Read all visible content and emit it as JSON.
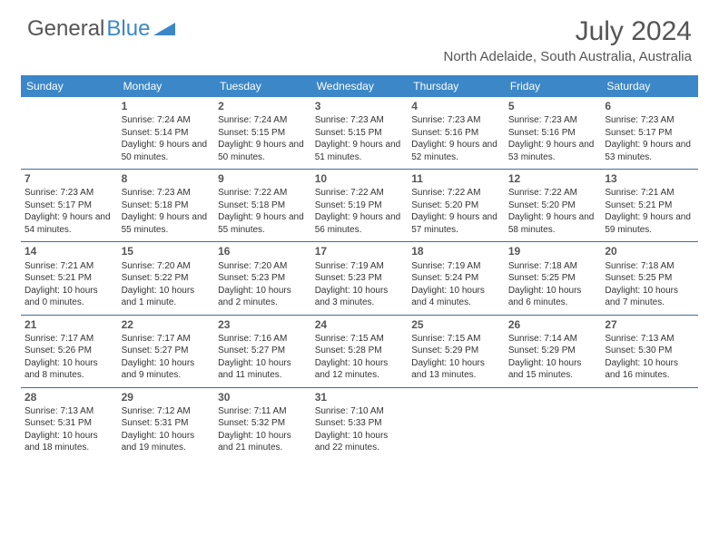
{
  "logo": {
    "text1": "General",
    "text2": "Blue",
    "triangle_color": "#3b87c8"
  },
  "title": "July 2024",
  "location": "North Adelaide, South Australia, Australia",
  "header_bg": "#3b87c8",
  "divider_color": "#3b6f9e",
  "days_of_week": [
    "Sunday",
    "Monday",
    "Tuesday",
    "Wednesday",
    "Thursday",
    "Friday",
    "Saturday"
  ],
  "weeks": [
    [
      null,
      {
        "n": "1",
        "sr": "7:24 AM",
        "ss": "5:14 PM",
        "dl": "9 hours and 50 minutes."
      },
      {
        "n": "2",
        "sr": "7:24 AM",
        "ss": "5:15 PM",
        "dl": "9 hours and 50 minutes."
      },
      {
        "n": "3",
        "sr": "7:23 AM",
        "ss": "5:15 PM",
        "dl": "9 hours and 51 minutes."
      },
      {
        "n": "4",
        "sr": "7:23 AM",
        "ss": "5:16 PM",
        "dl": "9 hours and 52 minutes."
      },
      {
        "n": "5",
        "sr": "7:23 AM",
        "ss": "5:16 PM",
        "dl": "9 hours and 53 minutes."
      },
      {
        "n": "6",
        "sr": "7:23 AM",
        "ss": "5:17 PM",
        "dl": "9 hours and 53 minutes."
      }
    ],
    [
      {
        "n": "7",
        "sr": "7:23 AM",
        "ss": "5:17 PM",
        "dl": "9 hours and 54 minutes."
      },
      {
        "n": "8",
        "sr": "7:23 AM",
        "ss": "5:18 PM",
        "dl": "9 hours and 55 minutes."
      },
      {
        "n": "9",
        "sr": "7:22 AM",
        "ss": "5:18 PM",
        "dl": "9 hours and 55 minutes."
      },
      {
        "n": "10",
        "sr": "7:22 AM",
        "ss": "5:19 PM",
        "dl": "9 hours and 56 minutes."
      },
      {
        "n": "11",
        "sr": "7:22 AM",
        "ss": "5:20 PM",
        "dl": "9 hours and 57 minutes."
      },
      {
        "n": "12",
        "sr": "7:22 AM",
        "ss": "5:20 PM",
        "dl": "9 hours and 58 minutes."
      },
      {
        "n": "13",
        "sr": "7:21 AM",
        "ss": "5:21 PM",
        "dl": "9 hours and 59 minutes."
      }
    ],
    [
      {
        "n": "14",
        "sr": "7:21 AM",
        "ss": "5:21 PM",
        "dl": "10 hours and 0 minutes."
      },
      {
        "n": "15",
        "sr": "7:20 AM",
        "ss": "5:22 PM",
        "dl": "10 hours and 1 minute."
      },
      {
        "n": "16",
        "sr": "7:20 AM",
        "ss": "5:23 PM",
        "dl": "10 hours and 2 minutes."
      },
      {
        "n": "17",
        "sr": "7:19 AM",
        "ss": "5:23 PM",
        "dl": "10 hours and 3 minutes."
      },
      {
        "n": "18",
        "sr": "7:19 AM",
        "ss": "5:24 PM",
        "dl": "10 hours and 4 minutes."
      },
      {
        "n": "19",
        "sr": "7:18 AM",
        "ss": "5:25 PM",
        "dl": "10 hours and 6 minutes."
      },
      {
        "n": "20",
        "sr": "7:18 AM",
        "ss": "5:25 PM",
        "dl": "10 hours and 7 minutes."
      }
    ],
    [
      {
        "n": "21",
        "sr": "7:17 AM",
        "ss": "5:26 PM",
        "dl": "10 hours and 8 minutes."
      },
      {
        "n": "22",
        "sr": "7:17 AM",
        "ss": "5:27 PM",
        "dl": "10 hours and 9 minutes."
      },
      {
        "n": "23",
        "sr": "7:16 AM",
        "ss": "5:27 PM",
        "dl": "10 hours and 11 minutes."
      },
      {
        "n": "24",
        "sr": "7:15 AM",
        "ss": "5:28 PM",
        "dl": "10 hours and 12 minutes."
      },
      {
        "n": "25",
        "sr": "7:15 AM",
        "ss": "5:29 PM",
        "dl": "10 hours and 13 minutes."
      },
      {
        "n": "26",
        "sr": "7:14 AM",
        "ss": "5:29 PM",
        "dl": "10 hours and 15 minutes."
      },
      {
        "n": "27",
        "sr": "7:13 AM",
        "ss": "5:30 PM",
        "dl": "10 hours and 16 minutes."
      }
    ],
    [
      {
        "n": "28",
        "sr": "7:13 AM",
        "ss": "5:31 PM",
        "dl": "10 hours and 18 minutes."
      },
      {
        "n": "29",
        "sr": "7:12 AM",
        "ss": "5:31 PM",
        "dl": "10 hours and 19 minutes."
      },
      {
        "n": "30",
        "sr": "7:11 AM",
        "ss": "5:32 PM",
        "dl": "10 hours and 21 minutes."
      },
      {
        "n": "31",
        "sr": "7:10 AM",
        "ss": "5:33 PM",
        "dl": "10 hours and 22 minutes."
      },
      null,
      null,
      null
    ]
  ],
  "labels": {
    "sunrise": "Sunrise:",
    "sunset": "Sunset:",
    "daylight": "Daylight:"
  }
}
